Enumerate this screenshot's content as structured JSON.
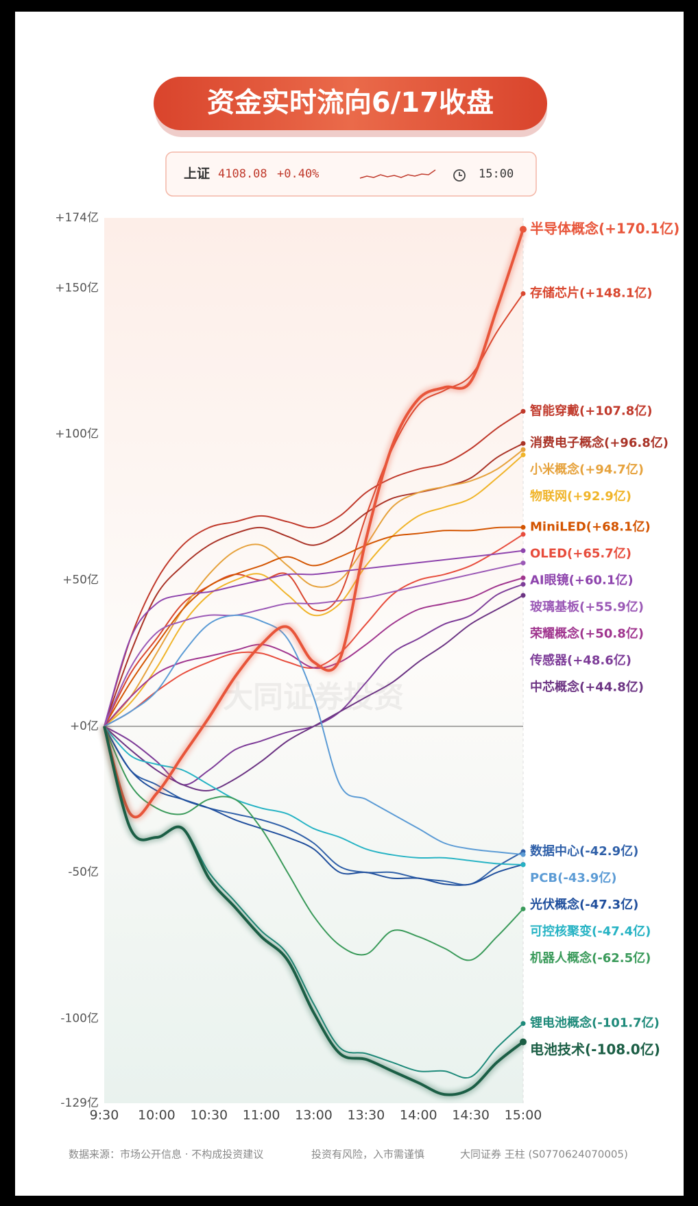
{
  "chart_data": {
    "type": "line",
    "title": "资金实时流向6/17收盘",
    "index": {
      "name": "上证",
      "value": "4108.08",
      "change": "+0.40%",
      "time": "15:00"
    },
    "watermark": "大同证券投资",
    "categories": [
      "9:30",
      null,
      "10:00",
      null,
      "10:30",
      null,
      "11:00",
      null,
      "13:00",
      null,
      "13:30",
      null,
      "14:00",
      null,
      "14:30",
      null,
      "15:00"
    ],
    "ylim": [
      -129,
      174
    ],
    "yticks": [
      {
        "value": 174,
        "label": "+174亿"
      },
      {
        "value": 150,
        "label": "+150亿"
      },
      {
        "value": 100,
        "label": "+100亿"
      },
      {
        "value": 50,
        "label": "+50亿"
      },
      {
        "value": 0,
        "label": "+0亿"
      },
      {
        "value": -50,
        "label": "-50亿"
      },
      {
        "value": -100,
        "label": "-100亿"
      },
      {
        "value": -129,
        "label": "-129亿"
      }
    ],
    "series": [
      {
        "name": "半导体概念",
        "color": "#e8553a",
        "highlight": true,
        "values": [
          0,
          -30,
          -23,
          -10,
          3,
          17,
          28,
          34,
          22,
          23,
          64,
          96,
          112,
          116,
          118,
          143,
          170.1
        ],
        "value_labels": [
          null,
          null,
          null,
          null,
          null,
          null,
          null,
          null,
          null,
          null,
          null,
          null,
          null,
          null,
          null,
          null,
          "(+170.1亿)"
        ]
      },
      {
        "name": "存储芯片",
        "color": "#d9472f",
        "values": [
          0,
          18,
          30,
          42,
          48,
          52,
          50,
          52,
          40,
          45,
          72,
          95,
          110,
          115,
          120,
          135,
          148.1
        ],
        "value_labels": [
          null,
          null,
          null,
          null,
          null,
          null,
          null,
          null,
          null,
          null,
          null,
          null,
          null,
          null,
          null,
          null,
          "(+148.1亿)"
        ]
      },
      {
        "name": "智能穿戴",
        "color": "#c0392b",
        "values": [
          0,
          30,
          50,
          62,
          68,
          70,
          72,
          70,
          68,
          72,
          80,
          85,
          88,
          90,
          95,
          102,
          107.8
        ],
        "value_labels": [
          null,
          null,
          null,
          null,
          null,
          null,
          null,
          null,
          null,
          null,
          null,
          null,
          null,
          null,
          null,
          null,
          "(+107.8亿)"
        ]
      },
      {
        "name": "消费电子概念",
        "color": "#a93226",
        "values": [
          0,
          25,
          45,
          55,
          62,
          66,
          68,
          65,
          62,
          66,
          73,
          78,
          80,
          82,
          85,
          92,
          96.8
        ],
        "value_labels": [
          null,
          null,
          null,
          null,
          null,
          null,
          null,
          null,
          null,
          null,
          null,
          null,
          null,
          null,
          null,
          null,
          "(+96.8亿)"
        ]
      },
      {
        "name": "小米概念",
        "color": "#e6a23c",
        "values": [
          0,
          10,
          25,
          40,
          52,
          60,
          62,
          55,
          48,
          50,
          62,
          75,
          80,
          82,
          84,
          88,
          94.7
        ],
        "value_labels": [
          null,
          null,
          null,
          null,
          null,
          null,
          null,
          null,
          null,
          null,
          null,
          null,
          null,
          null,
          null,
          null,
          "(+94.7亿)"
        ]
      },
      {
        "name": "物联网",
        "color": "#f0b429",
        "values": [
          0,
          8,
          20,
          35,
          45,
          50,
          52,
          45,
          38,
          42,
          55,
          65,
          72,
          75,
          78,
          85,
          92.9
        ],
        "value_labels": [
          null,
          null,
          null,
          null,
          null,
          null,
          null,
          null,
          null,
          null,
          null,
          null,
          null,
          null,
          null,
          null,
          "(+92.9亿)"
        ]
      },
      {
        "name": "MiniLED",
        "color": "#d35400",
        "values": [
          0,
          15,
          28,
          40,
          48,
          52,
          55,
          58,
          55,
          58,
          62,
          65,
          66,
          67,
          67,
          68,
          68.1
        ],
        "value_labels": [
          null,
          null,
          null,
          null,
          null,
          null,
          null,
          null,
          null,
          null,
          null,
          null,
          null,
          null,
          null,
          null,
          "(+68.1亿)"
        ]
      },
      {
        "name": "OLED",
        "color": "#e74c3c",
        "values": [
          0,
          5,
          12,
          18,
          22,
          25,
          25,
          22,
          20,
          25,
          35,
          45,
          50,
          52,
          55,
          60,
          65.7
        ],
        "value_labels": [
          null,
          null,
          null,
          null,
          null,
          null,
          null,
          null,
          null,
          null,
          null,
          null,
          null,
          null,
          null,
          null,
          "(+65.7亿)"
        ]
      },
      {
        "name": "AI眼镜",
        "color": "#8e44ad",
        "values": [
          0,
          30,
          42,
          45,
          46,
          48,
          50,
          52,
          52,
          53,
          54,
          55,
          56,
          57,
          58,
          59,
          60.1
        ],
        "value_labels": [
          null,
          null,
          null,
          null,
          null,
          null,
          null,
          null,
          null,
          null,
          null,
          null,
          null,
          null,
          null,
          null,
          "(+60.1亿)"
        ]
      },
      {
        "name": "玻璃基板",
        "color": "#9b59b6",
        "values": [
          0,
          20,
          32,
          36,
          38,
          38,
          40,
          42,
          42,
          43,
          44,
          46,
          48,
          50,
          52,
          54,
          55.9
        ],
        "value_labels": [
          null,
          null,
          null,
          null,
          null,
          null,
          null,
          null,
          null,
          null,
          null,
          null,
          null,
          null,
          null,
          null,
          "(+55.9亿)"
        ]
      },
      {
        "name": "荣耀概念",
        "color": "#a0368f",
        "values": [
          0,
          10,
          18,
          22,
          24,
          26,
          28,
          25,
          20,
          22,
          28,
          35,
          40,
          42,
          44,
          48,
          50.8
        ],
        "value_labels": [
          null,
          null,
          null,
          null,
          null,
          null,
          null,
          null,
          null,
          null,
          null,
          null,
          null,
          null,
          null,
          null,
          "(+50.8亿)"
        ]
      },
      {
        "name": "传感器",
        "color": "#7d3c98",
        "values": [
          0,
          -5,
          -12,
          -20,
          -15,
          -8,
          -5,
          -2,
          0,
          5,
          15,
          25,
          30,
          35,
          38,
          45,
          48.6
        ],
        "value_labels": [
          null,
          null,
          null,
          null,
          null,
          null,
          null,
          null,
          null,
          null,
          null,
          null,
          null,
          null,
          null,
          null,
          "(+48.6亿)"
        ]
      },
      {
        "name": "中芯概念",
        "color": "#6c3483",
        "values": [
          0,
          -8,
          -15,
          -20,
          -22,
          -18,
          -12,
          -5,
          0,
          5,
          10,
          15,
          22,
          28,
          35,
          40,
          44.8
        ],
        "value_labels": [
          null,
          null,
          null,
          null,
          null,
          null,
          null,
          null,
          null,
          null,
          null,
          null,
          null,
          null,
          null,
          null,
          "(+44.8亿)"
        ]
      },
      {
        "name": "数据中心",
        "color": "#2e5fa8",
        "values": [
          0,
          -15,
          -20,
          -25,
          -28,
          -30,
          -32,
          -35,
          -40,
          -48,
          -50,
          -50,
          -52,
          -53,
          -54,
          -48,
          -42.9
        ],
        "value_labels": [
          null,
          null,
          null,
          null,
          null,
          null,
          null,
          null,
          null,
          null,
          null,
          null,
          null,
          null,
          null,
          null,
          "(-42.9亿)"
        ]
      },
      {
        "name": "PCB",
        "color": "#5b9bd5",
        "values": [
          0,
          5,
          12,
          25,
          35,
          38,
          36,
          30,
          10,
          -20,
          -25,
          -30,
          -35,
          -40,
          -42,
          -43,
          -43.9
        ],
        "value_labels": [
          null,
          null,
          null,
          null,
          null,
          null,
          null,
          null,
          null,
          null,
          null,
          null,
          null,
          null,
          null,
          null,
          "(-43.9亿)"
        ]
      },
      {
        "name": "光伏概念",
        "color": "#1f4e9c",
        "values": [
          0,
          -15,
          -22,
          -25,
          -28,
          -32,
          -35,
          -38,
          -42,
          -50,
          -50,
          -52,
          -52,
          -54,
          -54,
          -50,
          -47.3
        ],
        "value_labels": [
          null,
          null,
          null,
          null,
          null,
          null,
          null,
          null,
          null,
          null,
          null,
          null,
          null,
          null,
          null,
          null,
          "(-47.3亿)"
        ]
      },
      {
        "name": "可控核聚变",
        "color": "#26b3c4",
        "values": [
          0,
          -10,
          -13,
          -15,
          -20,
          -25,
          -28,
          -30,
          -35,
          -38,
          -42,
          -44,
          -45,
          -45,
          -46,
          -47,
          -47.4
        ],
        "value_labels": [
          null,
          null,
          null,
          null,
          null,
          null,
          null,
          null,
          null,
          null,
          null,
          null,
          null,
          null,
          null,
          null,
          "(-47.4亿)"
        ]
      },
      {
        "name": "机器人概念",
        "color": "#3a9a5a",
        "values": [
          0,
          -20,
          -28,
          -30,
          -25,
          -25,
          -35,
          -50,
          -65,
          -75,
          -78,
          -70,
          -72,
          -76,
          -80,
          -72,
          -62.5
        ],
        "value_labels": [
          null,
          null,
          null,
          null,
          null,
          null,
          null,
          null,
          null,
          null,
          null,
          null,
          null,
          null,
          null,
          null,
          "(-62.5亿)"
        ]
      },
      {
        "name": "锂电池概念",
        "color": "#1e8a7a",
        "values": [
          0,
          -35,
          -38,
          -35,
          -50,
          -60,
          -70,
          -78,
          -95,
          -110,
          -112,
          -115,
          -118,
          -118,
          -120,
          -110,
          -101.7
        ],
        "value_labels": [
          null,
          null,
          null,
          null,
          null,
          null,
          null,
          null,
          null,
          null,
          null,
          null,
          null,
          null,
          null,
          null,
          "(-101.7亿)"
        ]
      },
      {
        "name": "电池技术",
        "color": "#1b5e45",
        "highlight": true,
        "values": [
          0,
          -35,
          -38,
          -35,
          -52,
          -62,
          -72,
          -80,
          -98,
          -112,
          -114,
          -118,
          -122,
          -126,
          -124,
          -115,
          -108.0
        ],
        "value_labels": [
          null,
          null,
          null,
          null,
          null,
          null,
          null,
          null,
          null,
          null,
          null,
          null,
          null,
          null,
          null,
          null,
          "(-108.0亿)"
        ]
      }
    ],
    "footer": [
      "数据来源：市场公开信息 · 不构成投资建议",
      "投资有风险，入市需谨慎",
      "大同证券 王柱 (S0770624070005)"
    ]
  }
}
